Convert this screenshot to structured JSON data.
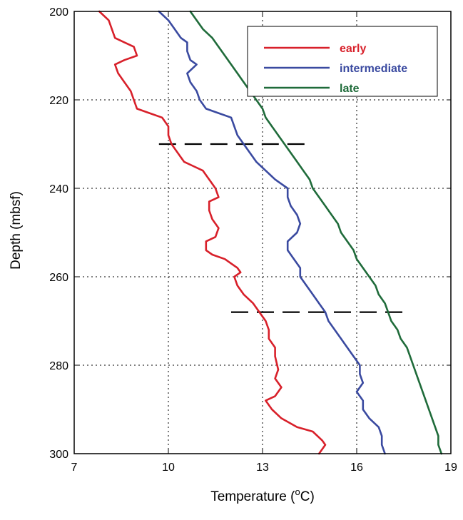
{
  "chart_data": {
    "type": "line",
    "xlabel_main": "Temperature (",
    "xlabel_sup": "o",
    "xlabel_end": "C)",
    "ylabel": "Depth (mbsf)",
    "xlim": [
      7,
      19
    ],
    "ylim": [
      200,
      300
    ],
    "y_inverted": true,
    "grid": true,
    "legend_position": "top-right",
    "x_ticks": [
      "7",
      "10",
      "13",
      "16",
      "19"
    ],
    "y_ticks": [
      "200",
      "220",
      "240",
      "260",
      "280",
      "300"
    ],
    "series": [
      {
        "name": "early",
        "color": "#d8202a",
        "points": [
          [
            7.8,
            200
          ],
          [
            8.1,
            202
          ],
          [
            8.2,
            204
          ],
          [
            8.3,
            206
          ],
          [
            8.6,
            207
          ],
          [
            8.9,
            208
          ],
          [
            9.0,
            210
          ],
          [
            8.6,
            211
          ],
          [
            8.3,
            212
          ],
          [
            8.4,
            214
          ],
          [
            8.6,
            216
          ],
          [
            8.8,
            218
          ],
          [
            8.9,
            220
          ],
          [
            9.0,
            222
          ],
          [
            9.4,
            223
          ],
          [
            9.8,
            224
          ],
          [
            10.0,
            226
          ],
          [
            10.0,
            228
          ],
          [
            10.1,
            230
          ],
          [
            10.3,
            232
          ],
          [
            10.5,
            234
          ],
          [
            10.8,
            235
          ],
          [
            11.1,
            236
          ],
          [
            11.3,
            238
          ],
          [
            11.5,
            240
          ],
          [
            11.6,
            242
          ],
          [
            11.3,
            243
          ],
          [
            11.3,
            245
          ],
          [
            11.4,
            247
          ],
          [
            11.6,
            249
          ],
          [
            11.5,
            251
          ],
          [
            11.2,
            252
          ],
          [
            11.2,
            254
          ],
          [
            11.4,
            255
          ],
          [
            11.8,
            256
          ],
          [
            12.0,
            257
          ],
          [
            12.2,
            258
          ],
          [
            12.3,
            259
          ],
          [
            12.1,
            260
          ],
          [
            12.2,
            262
          ],
          [
            12.4,
            264
          ],
          [
            12.7,
            266
          ],
          [
            12.9,
            268
          ],
          [
            13.1,
            270
          ],
          [
            13.2,
            272
          ],
          [
            13.2,
            274
          ],
          [
            13.4,
            276
          ],
          [
            13.4,
            278
          ],
          [
            13.5,
            281
          ],
          [
            13.4,
            283
          ],
          [
            13.6,
            285
          ],
          [
            13.4,
            287
          ],
          [
            13.1,
            288
          ],
          [
            13.3,
            290
          ],
          [
            13.6,
            292
          ],
          [
            14.1,
            294
          ],
          [
            14.6,
            295
          ],
          [
            14.9,
            297
          ],
          [
            15.0,
            298
          ],
          [
            14.8,
            300
          ]
        ]
      },
      {
        "name": "intermediate",
        "color": "#3a4aa0",
        "points": [
          [
            9.7,
            200
          ],
          [
            10.0,
            202
          ],
          [
            10.2,
            204
          ],
          [
            10.4,
            206
          ],
          [
            10.6,
            207
          ],
          [
            10.6,
            209
          ],
          [
            10.7,
            211
          ],
          [
            10.9,
            212
          ],
          [
            10.6,
            214
          ],
          [
            10.7,
            216
          ],
          [
            10.9,
            218
          ],
          [
            11.0,
            220
          ],
          [
            11.2,
            222
          ],
          [
            11.6,
            223
          ],
          [
            12.0,
            224
          ],
          [
            12.1,
            226
          ],
          [
            12.2,
            228
          ],
          [
            12.4,
            230
          ],
          [
            12.6,
            232
          ],
          [
            12.8,
            234
          ],
          [
            13.1,
            236
          ],
          [
            13.4,
            238
          ],
          [
            13.6,
            239
          ],
          [
            13.8,
            240
          ],
          [
            13.8,
            242
          ],
          [
            13.9,
            244
          ],
          [
            14.1,
            246
          ],
          [
            14.2,
            248
          ],
          [
            14.1,
            250
          ],
          [
            13.8,
            252
          ],
          [
            13.8,
            254
          ],
          [
            14.0,
            256
          ],
          [
            14.2,
            258
          ],
          [
            14.2,
            260
          ],
          [
            14.4,
            262
          ],
          [
            14.6,
            264
          ],
          [
            14.8,
            266
          ],
          [
            15.0,
            268
          ],
          [
            15.1,
            270
          ],
          [
            15.3,
            272
          ],
          [
            15.5,
            274
          ],
          [
            15.7,
            276
          ],
          [
            15.9,
            278
          ],
          [
            16.1,
            280
          ],
          [
            16.1,
            282
          ],
          [
            16.2,
            284
          ],
          [
            16.0,
            286
          ],
          [
            16.2,
            288
          ],
          [
            16.2,
            290
          ],
          [
            16.4,
            292
          ],
          [
            16.7,
            294
          ],
          [
            16.8,
            296
          ],
          [
            16.8,
            298
          ],
          [
            16.9,
            300
          ]
        ]
      },
      {
        "name": "late",
        "color": "#1f6b3a",
        "points": [
          [
            10.7,
            200
          ],
          [
            10.9,
            202
          ],
          [
            11.1,
            204
          ],
          [
            11.4,
            206
          ],
          [
            11.6,
            208
          ],
          [
            11.8,
            210
          ],
          [
            12.0,
            212
          ],
          [
            12.2,
            214
          ],
          [
            12.4,
            216
          ],
          [
            12.6,
            218
          ],
          [
            12.8,
            220
          ],
          [
            13.0,
            222
          ],
          [
            13.1,
            224
          ],
          [
            13.3,
            226
          ],
          [
            13.5,
            228
          ],
          [
            13.7,
            230
          ],
          [
            13.9,
            232
          ],
          [
            14.1,
            234
          ],
          [
            14.3,
            236
          ],
          [
            14.5,
            238
          ],
          [
            14.6,
            240
          ],
          [
            14.8,
            242
          ],
          [
            15.0,
            244
          ],
          [
            15.2,
            246
          ],
          [
            15.4,
            248
          ],
          [
            15.5,
            250
          ],
          [
            15.7,
            252
          ],
          [
            15.9,
            254
          ],
          [
            16.0,
            256
          ],
          [
            16.2,
            258
          ],
          [
            16.4,
            260
          ],
          [
            16.6,
            262
          ],
          [
            16.7,
            264
          ],
          [
            16.9,
            266
          ],
          [
            17.0,
            268
          ],
          [
            17.1,
            270
          ],
          [
            17.3,
            272
          ],
          [
            17.4,
            274
          ],
          [
            17.6,
            276
          ],
          [
            17.7,
            278
          ],
          [
            17.8,
            280
          ],
          [
            17.9,
            282
          ],
          [
            18.0,
            284
          ],
          [
            18.1,
            286
          ],
          [
            18.2,
            288
          ],
          [
            18.3,
            290
          ],
          [
            18.4,
            292
          ],
          [
            18.5,
            294
          ],
          [
            18.6,
            296
          ],
          [
            18.6,
            298
          ],
          [
            18.7,
            300
          ]
        ]
      }
    ],
    "reference_lines": [
      {
        "depth": 230,
        "x_from": 9.7,
        "x_to": 14.5,
        "color": "#000000"
      },
      {
        "depth": 268,
        "x_from": 12.0,
        "x_to": 17.6,
        "color": "#000000"
      }
    ]
  }
}
